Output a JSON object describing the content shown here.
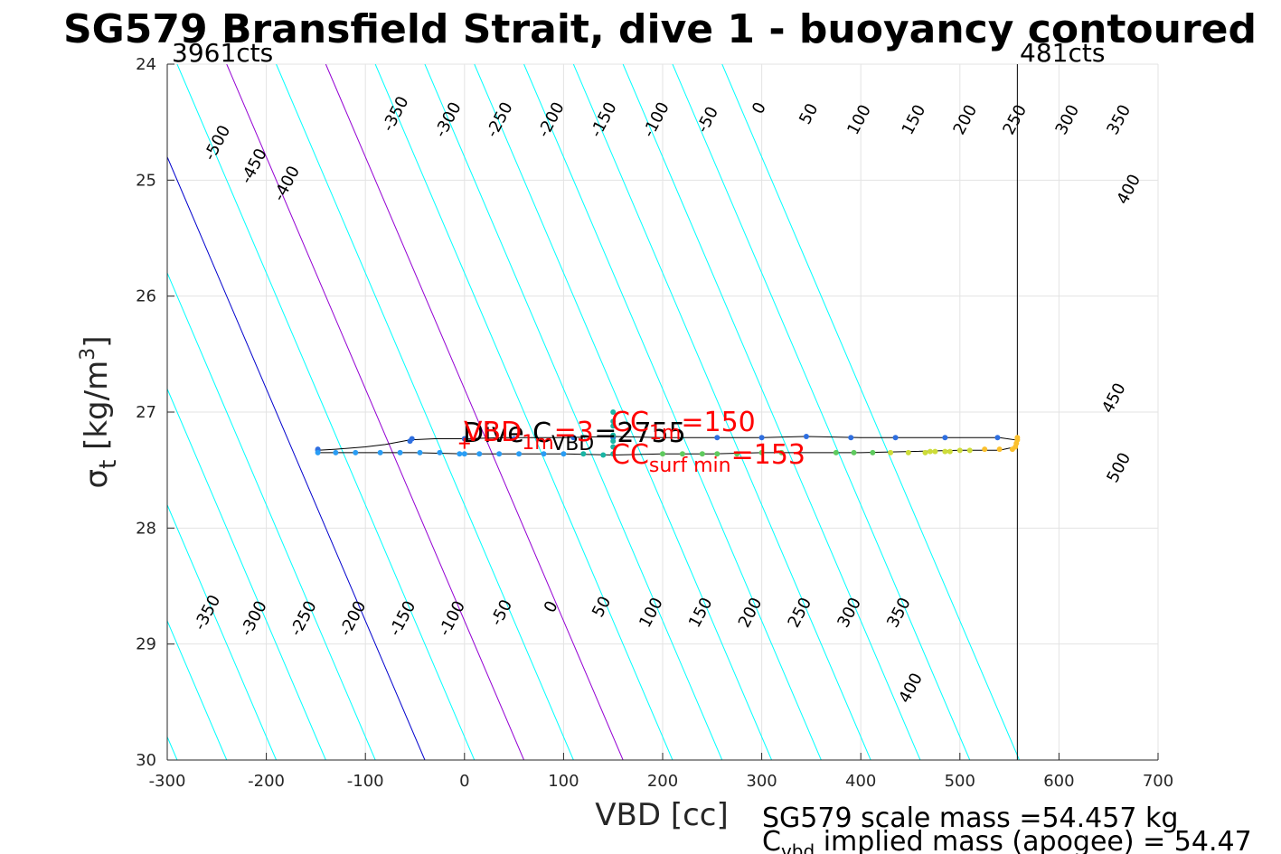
{
  "chart_data": {
    "type": "scatter",
    "title": "SG579 Bransfield Strait, dive 1 - buoyancy contoured",
    "xlabel": "VBD [cc]",
    "ylabel_main": "σ",
    "ylabel_sub": "t",
    "ylabel_units": "[kg/m",
    "ylabel_sup": "3",
    "ylabel_close": "]",
    "xlim": [
      -300,
      700
    ],
    "ylim": [
      24,
      30
    ],
    "y_reversed": true,
    "grid": true,
    "xticks": [
      "-300",
      "-200",
      "-100",
      "0",
      "100",
      "200",
      "300",
      "400",
      "500",
      "600",
      "700"
    ],
    "yticks": [
      "24",
      "25",
      "26",
      "27",
      "28",
      "29",
      "30"
    ],
    "counts_left": "3961cts",
    "counts_right": "481cts",
    "vbd_limit_x": 558,
    "contours": {
      "values": [
        -500,
        -450,
        -400,
        -350,
        -300,
        -250,
        -200,
        -150,
        -100,
        -50,
        0,
        50,
        100,
        150,
        200,
        250,
        300,
        350,
        400,
        450,
        500
      ],
      "offsets": [
        -840,
        -790,
        -740,
        -690,
        -640,
        -590,
        -540,
        -490,
        -440,
        -390,
        -340,
        -290,
        -240,
        -190,
        -140,
        -90,
        -40,
        10,
        60,
        110,
        160
      ],
      "slope_cc_per_unit_sigma": 50,
      "color": "#00ffff",
      "zero_color": "#0000cd",
      "highlight_color": "#9400d3",
      "highlight_values": [
        100,
        200
      ]
    },
    "contour_labels_top": [
      {
        "text": "-500",
        "x": -245,
        "y": 24.7
      },
      {
        "text": "-450",
        "x": -208,
        "y": 24.9
      },
      {
        "text": "-400",
        "x": -175,
        "y": 25.05
      },
      {
        "text": "-350",
        "x": -65,
        "y": 24.45
      },
      {
        "text": "-300",
        "x": -12,
        "y": 24.5
      },
      {
        "text": "-250",
        "x": 40,
        "y": 24.5
      },
      {
        "text": "-200",
        "x": 92,
        "y": 24.5
      },
      {
        "text": "-150",
        "x": 145,
        "y": 24.5
      },
      {
        "text": "-100",
        "x": 198,
        "y": 24.5
      },
      {
        "text": "-50",
        "x": 250,
        "y": 24.5
      },
      {
        "text": "0",
        "x": 302,
        "y": 24.4
      },
      {
        "text": "50",
        "x": 352,
        "y": 24.45
      },
      {
        "text": "100",
        "x": 403,
        "y": 24.5
      },
      {
        "text": "150",
        "x": 458,
        "y": 24.5
      },
      {
        "text": "200",
        "x": 510,
        "y": 24.5
      },
      {
        "text": "250",
        "x": 560,
        "y": 24.5
      },
      {
        "text": "300",
        "x": 613,
        "y": 24.5
      },
      {
        "text": "350",
        "x": 665,
        "y": 24.5
      },
      {
        "text": "400",
        "x": 675,
        "y": 25.1
      },
      {
        "text": "450",
        "x": 660,
        "y": 26.9
      },
      {
        "text": "500",
        "x": 665,
        "y": 27.5
      }
    ],
    "contour_labels_bottom": [
      {
        "text": "-350",
        "x": -255,
        "y": 28.75
      },
      {
        "text": "-300",
        "x": -208,
        "y": 28.8
      },
      {
        "text": "-250",
        "x": -158,
        "y": 28.8
      },
      {
        "text": "-200",
        "x": -108,
        "y": 28.8
      },
      {
        "text": "-150",
        "x": -58,
        "y": 28.8
      },
      {
        "text": "-100",
        "x": -8,
        "y": 28.8
      },
      {
        "text": "-50",
        "x": 42,
        "y": 28.75
      },
      {
        "text": "0",
        "x": 92,
        "y": 28.7
      },
      {
        "text": "50",
        "x": 143,
        "y": 28.7
      },
      {
        "text": "100",
        "x": 193,
        "y": 28.75
      },
      {
        "text": "150",
        "x": 243,
        "y": 28.75
      },
      {
        "text": "200",
        "x": 293,
        "y": 28.75
      },
      {
        "text": "250",
        "x": 343,
        "y": 28.75
      },
      {
        "text": "300",
        "x": 393,
        "y": 28.75
      },
      {
        "text": "350",
        "x": 443,
        "y": 28.75
      },
      {
        "text": "400",
        "x": 455,
        "y": 29.4
      }
    ],
    "trace": [
      [
        -148,
        27.33
      ],
      [
        -130,
        27.32
      ],
      [
        -100,
        27.3
      ],
      [
        -80,
        27.28
      ],
      [
        -55,
        27.24
      ],
      [
        -30,
        27.23
      ],
      [
        0,
        27.23
      ],
      [
        40,
        27.22
      ],
      [
        100,
        27.22
      ],
      [
        150,
        27.21
      ],
      [
        200,
        27.22
      ],
      [
        250,
        27.22
      ],
      [
        300,
        27.22
      ],
      [
        345,
        27.21
      ],
      [
        400,
        27.22
      ],
      [
        450,
        27.22
      ],
      [
        500,
        27.22
      ],
      [
        540,
        27.22
      ],
      [
        556,
        27.24
      ],
      [
        556,
        27.3
      ],
      [
        540,
        27.33
      ],
      [
        500,
        27.33
      ],
      [
        450,
        27.34
      ],
      [
        400,
        27.35
      ],
      [
        350,
        27.35
      ],
      [
        300,
        27.35
      ],
      [
        250,
        27.36
      ],
      [
        200,
        27.36
      ],
      [
        150,
        27.37
      ],
      [
        100,
        27.36
      ],
      [
        50,
        27.36
      ],
      [
        0,
        27.36
      ],
      [
        -50,
        27.35
      ],
      [
        -100,
        27.35
      ],
      [
        -148,
        27.35
      ]
    ],
    "down_points": [
      [
        -148,
        27.35
      ],
      [
        -130,
        27.35
      ],
      [
        -110,
        27.35
      ],
      [
        -85,
        27.35
      ],
      [
        -65,
        27.35
      ],
      [
        -45,
        27.35
      ],
      [
        -25,
        27.35
      ],
      [
        -5,
        27.36
      ],
      [
        0,
        27.36
      ],
      [
        15,
        27.36
      ],
      [
        35,
        27.36
      ],
      [
        55,
        27.36
      ],
      [
        80,
        27.36
      ],
      [
        100,
        27.36
      ],
      [
        120,
        27.36
      ],
      [
        140,
        27.37
      ],
      [
        150,
        27.0
      ],
      [
        150,
        27.08
      ],
      [
        150,
        27.12
      ],
      [
        150,
        27.2
      ],
      [
        150,
        27.25
      ],
      [
        150,
        27.3
      ],
      [
        150,
        27.36
      ],
      [
        200,
        27.36
      ],
      [
        220,
        27.36
      ],
      [
        240,
        27.36
      ],
      [
        255,
        27.36
      ],
      [
        275,
        27.36
      ],
      [
        300,
        27.35
      ],
      [
        320,
        27.35
      ],
      [
        375,
        27.35
      ],
      [
        393,
        27.35
      ],
      [
        412,
        27.35
      ],
      [
        430,
        27.35
      ],
      [
        448,
        27.35
      ],
      [
        465,
        27.35
      ],
      [
        470,
        27.34
      ],
      [
        475,
        27.34
      ],
      [
        485,
        27.34
      ],
      [
        490,
        27.34
      ],
      [
        500,
        27.33
      ],
      [
        510,
        27.33
      ],
      [
        525,
        27.32
      ],
      [
        540,
        27.32
      ],
      [
        553,
        27.32
      ],
      [
        556,
        27.3
      ],
      [
        557,
        27.27
      ],
      [
        558,
        27.24
      ],
      [
        558,
        27.22
      ]
    ],
    "up_points": [
      [
        -148,
        27.32
      ],
      [
        -148,
        27.33
      ],
      [
        -55,
        27.25
      ],
      [
        -53,
        27.23
      ],
      [
        0,
        27.23
      ],
      [
        50,
        27.23
      ],
      [
        110,
        27.22
      ],
      [
        150,
        27.22
      ],
      [
        255,
        27.22
      ],
      [
        300,
        27.22
      ],
      [
        345,
        27.21
      ],
      [
        390,
        27.22
      ],
      [
        435,
        27.22
      ],
      [
        485,
        27.22
      ],
      [
        538,
        27.22
      ]
    ],
    "annotations": {
      "cc_label": "CC",
      "cc_sub": "1m",
      "cc_value": "=150",
      "cc_surf_label": "CC",
      "cc_surf_sub": "surf min",
      "cc_surf_value": "=153",
      "vbd_label": "VBD",
      "vbd_sub": "1m",
      "vbd_value": "=3",
      "dive_label": "Dive C",
      "dive_sub": "VBD",
      "dive_value": "=2755"
    },
    "series": [
      {
        "name": "",
        "color": "#00bfbf"
      }
    ]
  },
  "footer": {
    "line1": "SG579 scale mass =54.457 kg",
    "line2_main": "C",
    "line2_sub": "vbd",
    "line2_rest": " implied mass (apogee) = 54.47"
  }
}
